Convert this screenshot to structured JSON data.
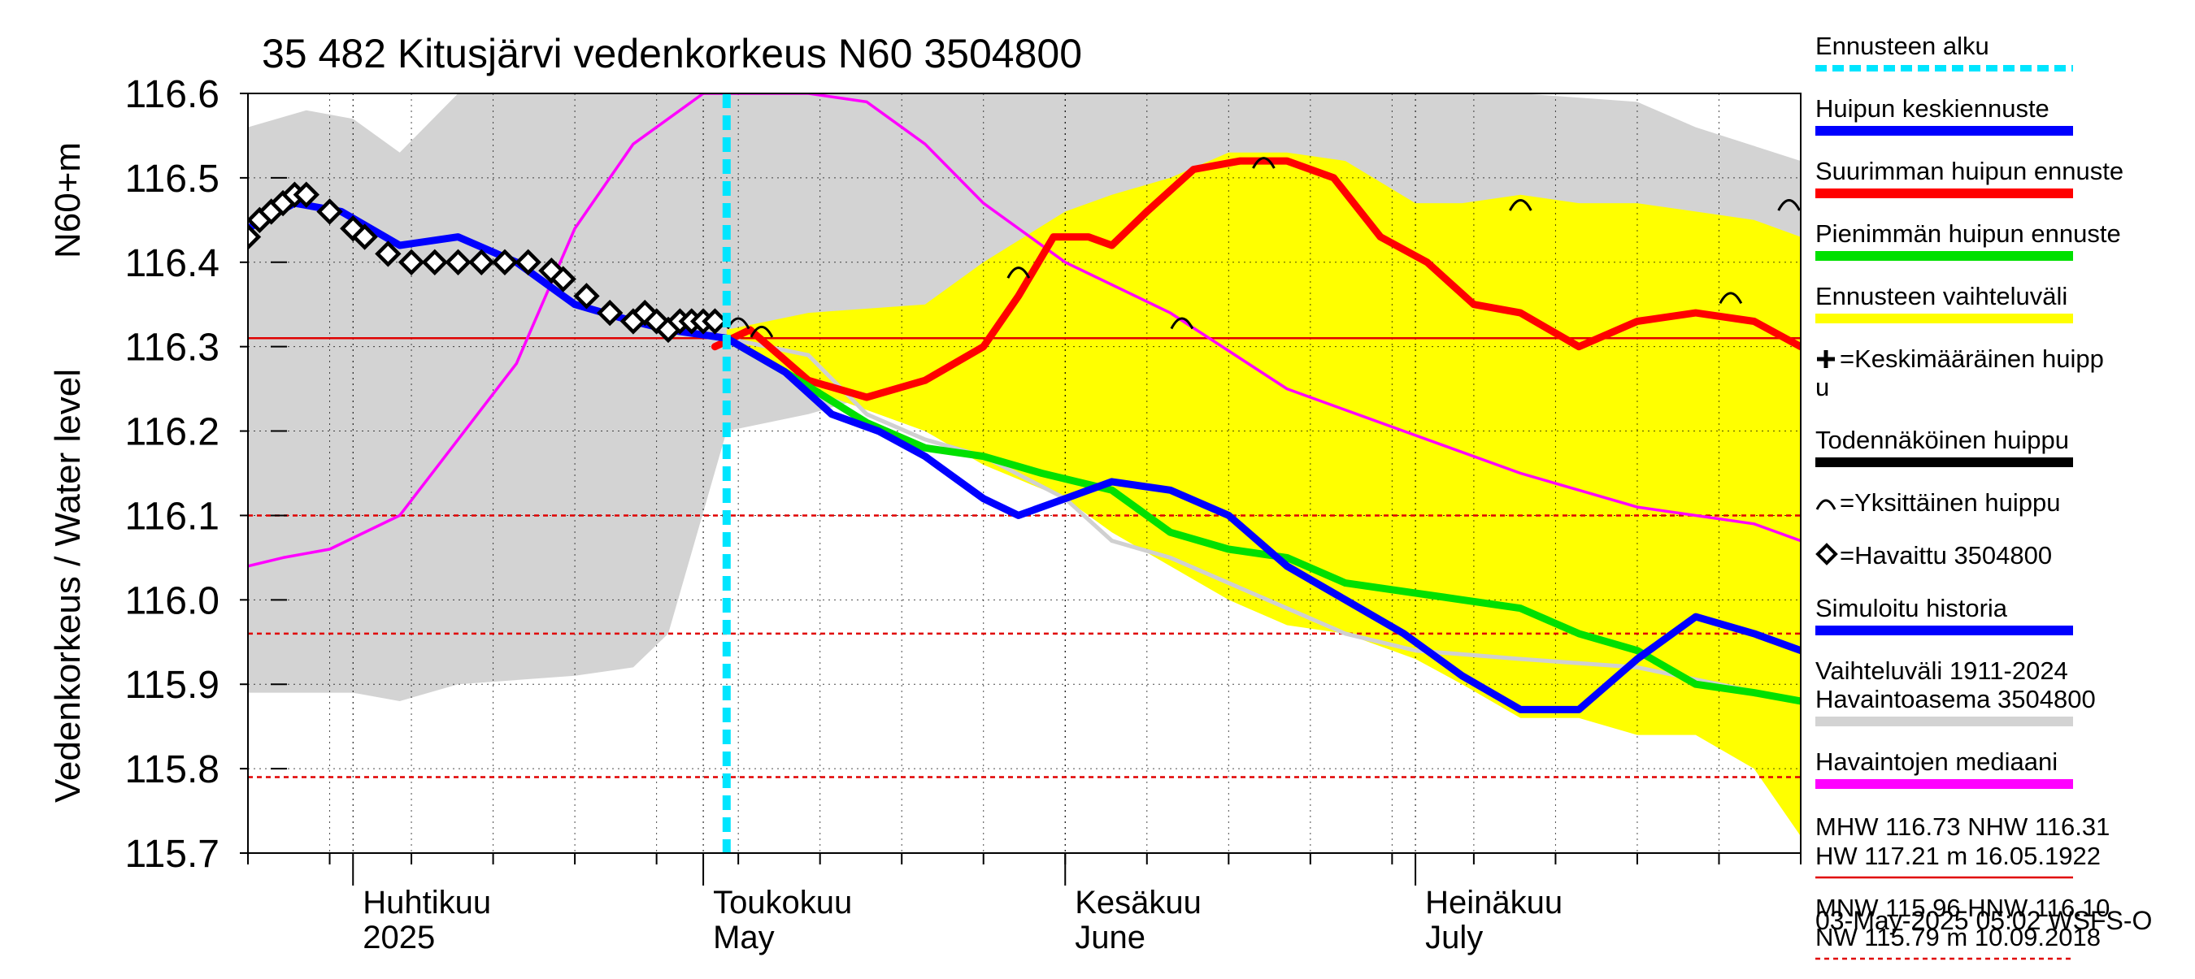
{
  "chart_data": {
    "type": "line",
    "title": "35 482 Kitusjärvi vedenkorkeus N60 3504800",
    "ylabel_top": "N60+m",
    "ylabel": "Vedenkorkeus / Water level",
    "ylim": [
      115.7,
      116.6
    ],
    "yticks": [
      "116.6",
      "116.5",
      "116.4",
      "116.3",
      "116.2",
      "116.1",
      "116.0",
      "115.9",
      "115.8",
      "115.7"
    ],
    "x_start": "2025-03-23",
    "x_end": "2025-08-03",
    "month_labels": [
      {
        "date": "2025-04-01",
        "fi": "Huhtikuu",
        "en": "2025"
      },
      {
        "date": "2025-05-01",
        "fi": "Toukokuu",
        "en": "May"
      },
      {
        "date": "2025-06-01",
        "fi": "Kesäkuu",
        "en": "June"
      },
      {
        "date": "2025-07-01",
        "fi": "Heinäkuu",
        "en": "July"
      }
    ],
    "forecast_start": "2025-05-03",
    "hlines": [
      {
        "name": "NHW",
        "value": 116.31,
        "color": "#e00000",
        "style": "solid"
      },
      {
        "name": "HNW",
        "value": 116.1,
        "color": "#e00000",
        "style": "dashed"
      },
      {
        "name": "MNW",
        "value": 115.96,
        "color": "#e00000",
        "style": "dashed"
      },
      {
        "name": "NW",
        "value": 115.79,
        "color": "#e00000",
        "style": "dashed"
      }
    ],
    "series": [
      {
        "name": "Vaihteluväli 1911-2024 Havaintoasema 3504800",
        "color": "#d3d3d3",
        "x": [
          "2025-03-23",
          "2025-03-28",
          "2025-04-01",
          "2025-04-05",
          "2025-04-10",
          "2025-04-20",
          "2025-04-25",
          "2025-04-28",
          "2025-05-03",
          "2025-05-10",
          "2025-05-15",
          "2025-05-20",
          "2025-05-25",
          "2025-06-01",
          "2025-06-10",
          "2025-06-20",
          "2025-06-25",
          "2025-07-01",
          "2025-07-10",
          "2025-07-20",
          "2025-07-25",
          "2025-08-03"
        ],
        "upper": [
          116.56,
          116.58,
          116.57,
          116.53,
          116.6,
          116.6,
          116.6,
          116.6,
          116.6,
          116.6,
          116.6,
          116.6,
          116.6,
          116.6,
          116.6,
          116.6,
          116.6,
          116.6,
          116.6,
          116.59,
          116.56,
          116.52
        ],
        "lower": [
          115.89,
          115.89,
          115.89,
          115.88,
          115.9,
          115.91,
          115.92,
          115.96,
          116.2,
          116.22,
          116.24,
          116.24,
          116.3,
          116.34,
          116.4,
          116.43,
          116.42,
          116.44,
          116.46,
          116.46,
          116.44,
          116.38
        ]
      },
      {
        "name": "Ennusteen vaihteluväli",
        "color": "#ffff00",
        "x": [
          "2025-05-03",
          "2025-05-10",
          "2025-05-20",
          "2025-05-25",
          "2025-06-01",
          "2025-06-05",
          "2025-06-10",
          "2025-06-15",
          "2025-06-20",
          "2025-06-25",
          "2025-07-01",
          "2025-07-05",
          "2025-07-10",
          "2025-07-15",
          "2025-07-20",
          "2025-07-25",
          "2025-07-30",
          "2025-08-03"
        ],
        "upper": [
          116.32,
          116.34,
          116.35,
          116.4,
          116.46,
          116.48,
          116.5,
          116.53,
          116.53,
          116.52,
          116.47,
          116.47,
          116.48,
          116.47,
          116.47,
          116.46,
          116.45,
          116.43
        ],
        "lower": [
          116.31,
          116.25,
          116.2,
          116.16,
          116.12,
          116.08,
          116.04,
          116.0,
          115.97,
          115.96,
          115.93,
          115.9,
          115.86,
          115.86,
          115.84,
          115.84,
          115.8,
          115.72
        ]
      },
      {
        "name": "Havaintojen mediaani",
        "color": "#ff00ff",
        "x": [
          "2025-03-23",
          "2025-03-26",
          "2025-03-30",
          "2025-04-05",
          "2025-04-10",
          "2025-04-15",
          "2025-04-20",
          "2025-04-25",
          "2025-05-01",
          "2025-05-05",
          "2025-05-10",
          "2025-05-15",
          "2025-05-20",
          "2025-05-25",
          "2025-06-01",
          "2025-06-10",
          "2025-06-20",
          "2025-06-30",
          "2025-07-10",
          "2025-07-20",
          "2025-07-30",
          "2025-08-03"
        ],
        "values": [
          116.04,
          116.05,
          116.06,
          116.1,
          116.19,
          116.28,
          116.44,
          116.54,
          116.6,
          116.6,
          116.6,
          116.59,
          116.54,
          116.47,
          116.4,
          116.34,
          116.25,
          116.2,
          116.15,
          116.11,
          116.09,
          116.07
        ]
      },
      {
        "name": "Mediaani ennuste",
        "color": "#d0d0d0",
        "x": [
          "2025-05-03",
          "2025-05-10",
          "2025-05-15",
          "2025-05-20",
          "2025-05-25",
          "2025-06-01",
          "2025-06-05",
          "2025-06-10",
          "2025-06-15",
          "2025-06-20",
          "2025-06-25",
          "2025-07-01",
          "2025-07-10",
          "2025-07-20",
          "2025-08-03"
        ],
        "values": [
          116.31,
          116.29,
          116.22,
          116.19,
          116.17,
          116.12,
          116.07,
          116.05,
          116.02,
          115.99,
          115.96,
          115.94,
          115.93,
          115.92,
          115.88
        ]
      },
      {
        "name": "Suurimman huipun ennuste",
        "color": "#ff0000",
        "x": [
          "2025-05-02",
          "2025-05-05",
          "2025-05-10",
          "2025-05-15",
          "2025-05-20",
          "2025-05-25",
          "2025-05-28",
          "2025-05-31",
          "2025-06-03",
          "2025-06-05",
          "2025-06-08",
          "2025-06-12",
          "2025-06-16",
          "2025-06-20",
          "2025-06-24",
          "2025-06-28",
          "2025-07-02",
          "2025-07-06",
          "2025-07-10",
          "2025-07-15",
          "2025-07-20",
          "2025-07-25",
          "2025-07-30",
          "2025-08-03"
        ],
        "values": [
          116.3,
          116.32,
          116.26,
          116.24,
          116.26,
          116.3,
          116.36,
          116.43,
          116.43,
          116.42,
          116.46,
          116.51,
          116.52,
          116.52,
          116.5,
          116.43,
          116.4,
          116.35,
          116.34,
          116.3,
          116.33,
          116.34,
          116.33,
          116.3
        ]
      },
      {
        "name": "Pienimmän huipun ennuste",
        "color": "#00e000",
        "x": [
          "2025-05-03",
          "2025-05-08",
          "2025-05-15",
          "2025-05-20",
          "2025-05-25",
          "2025-05-30",
          "2025-06-05",
          "2025-06-10",
          "2025-06-15",
          "2025-06-20",
          "2025-06-25",
          "2025-06-30",
          "2025-07-05",
          "2025-07-10",
          "2025-07-15",
          "2025-07-20",
          "2025-07-25",
          "2025-07-30",
          "2025-08-03"
        ],
        "values": [
          116.31,
          116.27,
          116.21,
          116.18,
          116.17,
          116.15,
          116.13,
          116.08,
          116.06,
          116.05,
          116.02,
          116.01,
          116.0,
          115.99,
          115.96,
          115.94,
          115.9,
          115.89,
          115.88
        ]
      },
      {
        "name": "Simuloitu historia",
        "color": "#0000ff",
        "x": [
          "2025-03-23",
          "2025-03-27",
          "2025-03-31",
          "2025-04-05",
          "2025-04-10",
          "2025-04-15",
          "2025-04-20",
          "2025-04-25",
          "2025-04-28",
          "2025-05-03",
          "2025-05-08",
          "2025-05-12",
          "2025-05-16",
          "2025-05-20",
          "2025-05-25",
          "2025-05-28",
          "2025-06-01",
          "2025-06-05",
          "2025-06-10",
          "2025-06-15",
          "2025-06-20",
          "2025-06-25",
          "2025-06-30",
          "2025-07-05",
          "2025-07-10",
          "2025-07-15",
          "2025-07-20",
          "2025-07-25",
          "2025-07-30",
          "2025-08-03"
        ],
        "values": [
          116.44,
          116.47,
          116.46,
          116.42,
          116.43,
          116.4,
          116.35,
          116.33,
          116.32,
          116.31,
          116.27,
          116.22,
          116.2,
          116.17,
          116.12,
          116.1,
          116.12,
          116.14,
          116.13,
          116.1,
          116.04,
          116.0,
          115.96,
          115.91,
          115.87,
          115.87,
          115.93,
          115.98,
          115.96,
          115.94
        ]
      },
      {
        "name": "Havaittu 3504800",
        "color": "#000000",
        "x": [
          "2025-03-23",
          "2025-03-24",
          "2025-03-25",
          "2025-03-26",
          "2025-03-27",
          "2025-03-28",
          "2025-03-30",
          "2025-04-01",
          "2025-04-02",
          "2025-04-04",
          "2025-04-06",
          "2025-04-08",
          "2025-04-10",
          "2025-04-12",
          "2025-04-14",
          "2025-04-16",
          "2025-04-18",
          "2025-04-19",
          "2025-04-21",
          "2025-04-23",
          "2025-04-25",
          "2025-04-26",
          "2025-04-27",
          "2025-04-28",
          "2025-04-29",
          "2025-04-30",
          "2025-05-01",
          "2025-05-02"
        ],
        "values": [
          116.43,
          116.45,
          116.46,
          116.47,
          116.48,
          116.48,
          116.46,
          116.44,
          116.43,
          116.41,
          116.4,
          116.4,
          116.4,
          116.4,
          116.4,
          116.4,
          116.39,
          116.38,
          116.36,
          116.34,
          116.33,
          116.34,
          116.33,
          116.32,
          116.33,
          116.33,
          116.33,
          116.33
        ]
      }
    ],
    "single_peaks": [
      {
        "date": "2025-05-28",
        "value": 116.39
      },
      {
        "date": "2025-06-11",
        "value": 116.33
      },
      {
        "date": "2025-06-18",
        "value": 116.52
      },
      {
        "date": "2025-07-10",
        "value": 116.47
      },
      {
        "date": "2025-07-28",
        "value": 116.36
      },
      {
        "date": "2025-08-02",
        "value": 116.47
      },
      {
        "date": "2025-05-04",
        "value": 116.33
      },
      {
        "date": "2025-05-06",
        "value": 116.32
      }
    ],
    "legend": [
      {
        "key": "ennuste-alku",
        "label": "Ennusteen alku",
        "color": "#00e5ff",
        "style": "dashed"
      },
      {
        "key": "huipun-keskiennuste",
        "label": "Huipun keskiennuste",
        "color": "#0000ff",
        "style": "bar"
      },
      {
        "key": "suurimman-huipun-ennuste",
        "label": "Suurimman huipun ennuste",
        "color": "#ff0000",
        "style": "bar"
      },
      {
        "key": "pienimman-huipun-ennuste",
        "label": "Pienimmän huipun ennuste",
        "color": "#00e000",
        "style": "bar"
      },
      {
        "key": "ennusteen-vaihteluvali",
        "label": "Ennusteen vaihteluväli",
        "color": "#ffff00",
        "style": "bar"
      },
      {
        "key": "keskimaarainen-huippu",
        "label": "=Keskimääräinen huipp",
        "label2": "u",
        "color": "#000000",
        "style": "plus"
      },
      {
        "key": "todennakoinen-huippu",
        "label": "Todennäköinen huippu",
        "color": "#000000",
        "style": "bar"
      },
      {
        "key": "yksittainen-huippu",
        "label": "=Yksittäinen huippu",
        "color": "#000000",
        "style": "arc"
      },
      {
        "key": "havaittu",
        "label": "=Havaittu 3504800",
        "color": "#000000",
        "style": "diamond"
      },
      {
        "key": "simuloitu-historia",
        "label": "Simuloitu historia",
        "color": "#0000ff",
        "style": "bar"
      },
      {
        "key": "vaihteluvali",
        "label": "Vaihteluväli 1911-2024",
        "label2": " Havaintoasema 3504800",
        "color": "#d3d3d3",
        "style": "bar"
      },
      {
        "key": "havaintojen-mediaani",
        "label": "Havaintojen mediaani",
        "color": "#ff00ff",
        "style": "bar"
      }
    ],
    "stats": [
      {
        "line1": "MHW 116.73 NHW 116.31",
        "line2": "HW 117.21 m 16.05.1922",
        "color": "#e00000",
        "style": "solid"
      },
      {
        "line1": "MNW 115.96 HNW 116.10",
        "line2": "NW 115.79 m 10.09.2018",
        "color": "#e00000",
        "style": "dashed"
      }
    ],
    "timestamp": "03-May-2025 05:02 WSFS-O"
  }
}
